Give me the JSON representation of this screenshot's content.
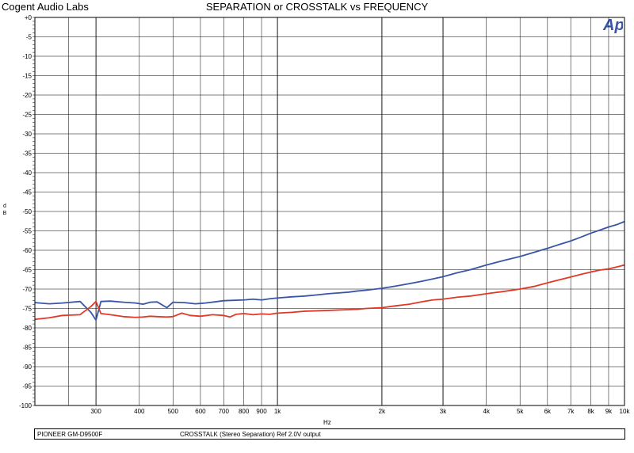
{
  "header": {
    "company": "Cogent Audio Labs",
    "title": "SEPARATION or CROSSTALK vs FREQUENCY"
  },
  "logo": {
    "text": "Ap",
    "color": "#3a55a8"
  },
  "footer": {
    "device": "PIONEER GM-D9500F",
    "description": "CROSSTALK  (Stereo Separation)  Ref 2.0V output"
  },
  "chart_data": {
    "type": "line",
    "title": "SEPARATION or CROSSTALK vs FREQUENCY",
    "xlabel": "Hz",
    "ylabel": "d\nB",
    "xscale": "log",
    "xlim": [
      200,
      10000
    ],
    "ylim": [
      -100,
      0
    ],
    "grid": true,
    "x_ticks": [
      300,
      400,
      500,
      600,
      700,
      800,
      900,
      1000,
      2000,
      3000,
      4000,
      5000,
      6000,
      7000,
      8000,
      9000,
      10000
    ],
    "x_tick_labels": [
      "300",
      "400",
      "500",
      "600",
      "700",
      "800",
      "900",
      "1k",
      "2k",
      "3k",
      "4k",
      "5k",
      "6k",
      "7k",
      "8k",
      "9k",
      "10k"
    ],
    "y_ticks": [
      0,
      -5,
      -10,
      -15,
      -20,
      -25,
      -30,
      -35,
      -40,
      -45,
      -50,
      -55,
      -60,
      -65,
      -70,
      -75,
      -80,
      -85,
      -90,
      -95,
      -100
    ],
    "y_tick_labels": [
      "+0",
      "-5",
      "-10",
      "-15",
      "-20",
      "-25",
      "-30",
      "-35",
      "-40",
      "-45",
      "-50",
      "-55",
      "-60",
      "-65",
      "-70",
      "-75",
      "-80",
      "-85",
      "-90",
      "-95",
      "-100"
    ],
    "series": [
      {
        "color": "#3a55a8",
        "points": [
          [
            200,
            -73.5
          ],
          [
            220,
            -73.8
          ],
          [
            240,
            -73.6
          ],
          [
            270,
            -73.2
          ],
          [
            290,
            -76
          ],
          [
            300,
            -78
          ],
          [
            310,
            -73.2
          ],
          [
            330,
            -73.1
          ],
          [
            360,
            -73.4
          ],
          [
            390,
            -73.6
          ],
          [
            410,
            -73.9
          ],
          [
            430,
            -73.4
          ],
          [
            450,
            -73.3
          ],
          [
            480,
            -74.8
          ],
          [
            500,
            -73.4
          ],
          [
            540,
            -73.5
          ],
          [
            580,
            -73.8
          ],
          [
            620,
            -73.6
          ],
          [
            660,
            -73.3
          ],
          [
            700,
            -73
          ],
          [
            750,
            -72.9
          ],
          [
            800,
            -72.8
          ],
          [
            850,
            -72.6
          ],
          [
            900,
            -72.8
          ],
          [
            950,
            -72.5
          ],
          [
            1000,
            -72.3
          ],
          [
            1100,
            -72
          ],
          [
            1200,
            -71.8
          ],
          [
            1300,
            -71.5
          ],
          [
            1400,
            -71.2
          ],
          [
            1500,
            -71
          ],
          [
            1600,
            -70.8
          ],
          [
            1700,
            -70.5
          ],
          [
            1800,
            -70.3
          ],
          [
            2000,
            -69.8
          ],
          [
            2200,
            -69.2
          ],
          [
            2400,
            -68.6
          ],
          [
            2600,
            -68.0
          ],
          [
            2800,
            -67.4
          ],
          [
            3000,
            -66.8
          ],
          [
            3300,
            -65.8
          ],
          [
            3600,
            -65.0
          ],
          [
            4000,
            -63.8
          ],
          [
            4500,
            -62.6
          ],
          [
            5000,
            -61.6
          ],
          [
            5500,
            -60.5
          ],
          [
            6000,
            -59.5
          ],
          [
            6500,
            -58.5
          ],
          [
            7000,
            -57.6
          ],
          [
            7500,
            -56.6
          ],
          [
            8000,
            -55.6
          ],
          [
            8500,
            -54.8
          ],
          [
            9000,
            -54.0
          ],
          [
            9500,
            -53.4
          ],
          [
            10000,
            -52.6
          ]
        ]
      },
      {
        "color": "#e03a26",
        "points": [
          [
            200,
            -77.8
          ],
          [
            220,
            -77.4
          ],
          [
            240,
            -76.8
          ],
          [
            270,
            -76.6
          ],
          [
            290,
            -74.5
          ],
          [
            300,
            -73.2
          ],
          [
            310,
            -76.3
          ],
          [
            330,
            -76.6
          ],
          [
            360,
            -77.1
          ],
          [
            390,
            -77.3
          ],
          [
            410,
            -77.2
          ],
          [
            430,
            -77.0
          ],
          [
            450,
            -77.1
          ],
          [
            480,
            -77.2
          ],
          [
            500,
            -77.1
          ],
          [
            530,
            -76.2
          ],
          [
            560,
            -76.8
          ],
          [
            600,
            -77.0
          ],
          [
            650,
            -76.6
          ],
          [
            700,
            -76.8
          ],
          [
            730,
            -77.2
          ],
          [
            760,
            -76.5
          ],
          [
            800,
            -76.3
          ],
          [
            850,
            -76.6
          ],
          [
            900,
            -76.4
          ],
          [
            950,
            -76.5
          ],
          [
            1000,
            -76.2
          ],
          [
            1100,
            -76.0
          ],
          [
            1200,
            -75.7
          ],
          [
            1300,
            -75.6
          ],
          [
            1400,
            -75.5
          ],
          [
            1500,
            -75.4
          ],
          [
            1600,
            -75.3
          ],
          [
            1700,
            -75.2
          ],
          [
            1800,
            -75.0
          ],
          [
            2000,
            -74.8
          ],
          [
            2200,
            -74.3
          ],
          [
            2400,
            -73.9
          ],
          [
            2600,
            -73.3
          ],
          [
            2800,
            -72.8
          ],
          [
            3000,
            -72.6
          ],
          [
            3300,
            -72.1
          ],
          [
            3600,
            -71.8
          ],
          [
            4000,
            -71.2
          ],
          [
            4500,
            -70.6
          ],
          [
            5000,
            -70.0
          ],
          [
            5500,
            -69.3
          ],
          [
            6000,
            -68.4
          ],
          [
            6500,
            -67.6
          ],
          [
            7000,
            -66.9
          ],
          [
            7500,
            -66.2
          ],
          [
            8000,
            -65.6
          ],
          [
            8500,
            -65.1
          ],
          [
            9000,
            -64.8
          ],
          [
            9500,
            -64.3
          ],
          [
            10000,
            -63.8
          ]
        ]
      }
    ]
  }
}
